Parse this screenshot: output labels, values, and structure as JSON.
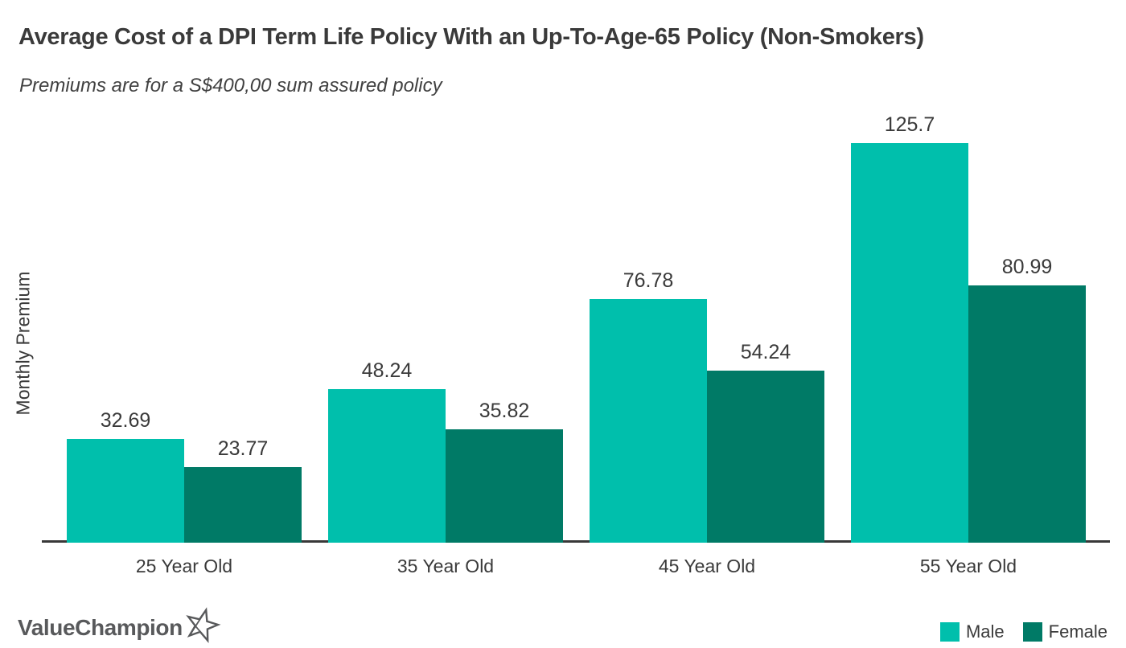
{
  "header": {
    "title": "Average Cost of a DPI Term Life Policy With an Up-To-Age-65 Policy (Non-Smokers)",
    "subtitle": "Premiums are for a S$400,00 sum assured policy"
  },
  "chart_data": {
    "type": "bar",
    "title": "Average Cost of a DPI Term Life Policy With an Up-To-Age-65 Policy (Non-Smokers)",
    "subtitle": "Premiums are for a S$400,00 sum assured policy",
    "xlabel": "",
    "ylabel": "Monthly Premium",
    "categories": [
      "25 Year Old",
      "35 Year Old",
      "45 Year Old",
      "55 Year Old"
    ],
    "series": [
      {
        "name": "Male",
        "color": "#00BFAC",
        "values": [
          32.69,
          48.24,
          76.78,
          125.7
        ]
      },
      {
        "name": "Female",
        "color": "#007A66",
        "values": [
          23.77,
          35.82,
          54.24,
          80.99
        ]
      }
    ],
    "ylim": [
      0,
      140
    ],
    "grid": false,
    "legend_position": "bottom-right",
    "value_labels_shown": true
  },
  "footer": {
    "logo_text": "ValueChampion"
  },
  "colors": {
    "male": "#00BFAC",
    "female": "#007A66",
    "text": "#3A3A3A",
    "axis": "#383838",
    "logo": "#58595B"
  }
}
